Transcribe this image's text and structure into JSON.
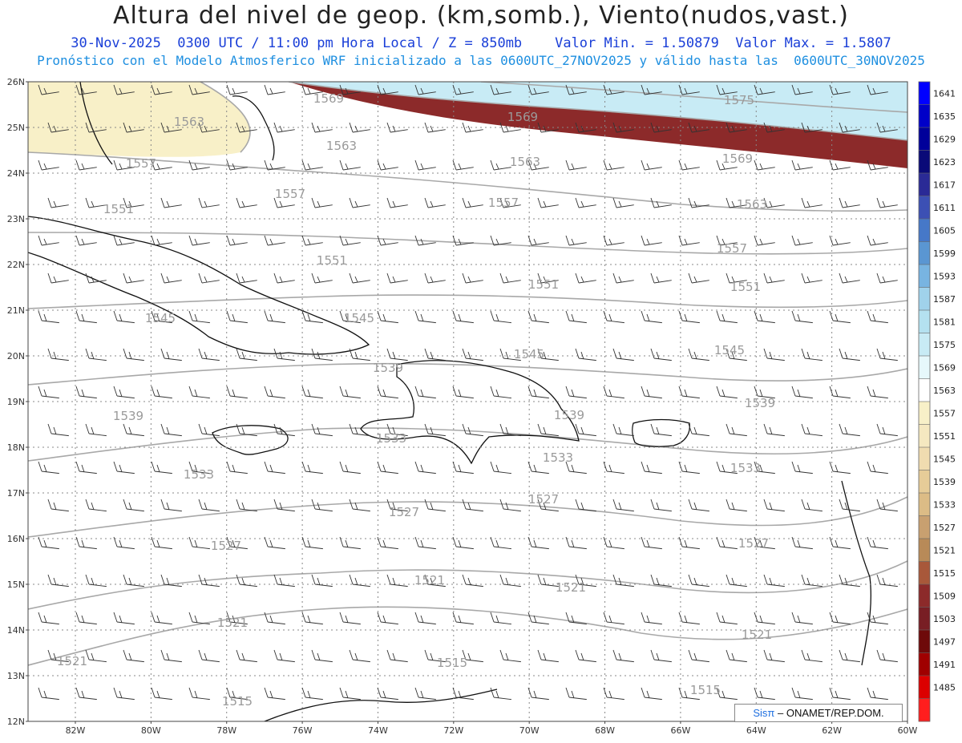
{
  "title": "Altura del nivel de geop. (km,somb.), Viento(nudos,vast.)",
  "subtitle1": "30-Nov-2025  0300 UTC / 11:00 pm Hora Local / Z = 850mb    Valor Min. = 1.50879  Valor Max. = 1.5807",
  "subtitle2": "Pronóstico con el Modelo Atmosferico WRF inicializado a las 0600UTC_27NOV2025 y válido hasta las  0600UTC_30NOV2025",
  "credit": {
    "brand": "Sisπ",
    "text": "– ONAMET/REP.DOM."
  },
  "axes": {
    "lat_labels": [
      "26N",
      "25N",
      "24N",
      "23N",
      "22N",
      "21N",
      "20N",
      "19N",
      "18N",
      "17N",
      "16N",
      "15N",
      "14N",
      "13N",
      "12N"
    ],
    "lon_labels": [
      "82W",
      "80W",
      "78W",
      "76W",
      "74W",
      "72W",
      "70W",
      "68W",
      "66W",
      "64W",
      "62W",
      "60W"
    ]
  },
  "colorbar": {
    "levels": [
      "1641",
      "1635",
      "1629",
      "1623",
      "1617",
      "1611",
      "1605",
      "1599",
      "1593",
      "1587",
      "1581",
      "1575",
      "1569",
      "1563",
      "1557",
      "1551",
      "1545",
      "1539",
      "1533",
      "1527",
      "1521",
      "1515",
      "1509",
      "1503",
      "1497",
      "1491",
      "1485"
    ],
    "colors": [
      "#0000ff",
      "#0000c8",
      "#00009a",
      "#0a0a78",
      "#2a2a96",
      "#3c50b4",
      "#4678c8",
      "#5a96d2",
      "#78b4e1",
      "#a0d2eb",
      "#b4e1f0",
      "#c8ebf5",
      "#e6f8fb",
      "#ffffff",
      "#f8f0c8",
      "#f5e8c0",
      "#f0dcb0",
      "#e6cc98",
      "#dcbc86",
      "#c8a070",
      "#b88a58",
      "#a8583a",
      "#8c2a2a",
      "#781e24",
      "#6e0a0a",
      "#a00000",
      "#dc0000",
      "#ff1e1e"
    ]
  },
  "contour_labels": [
    {
      "text": "1575"
    },
    {
      "text": "1569"
    },
    {
      "text": "1569"
    },
    {
      "text": "1569"
    },
    {
      "text": "1563"
    },
    {
      "text": "1563"
    },
    {
      "text": "1563"
    },
    {
      "text": "1563"
    },
    {
      "text": "1557"
    },
    {
      "text": "1557"
    },
    {
      "text": "1557"
    },
    {
      "text": "1557"
    },
    {
      "text": "1551"
    },
    {
      "text": "1551"
    },
    {
      "text": "1551"
    },
    {
      "text": "1551"
    },
    {
      "text": "1545"
    },
    {
      "text": "1545"
    },
    {
      "text": "1545"
    },
    {
      "text": "1545"
    },
    {
      "text": "1539"
    },
    {
      "text": "1539"
    },
    {
      "text": "1539"
    },
    {
      "text": "1539"
    },
    {
      "text": "1533"
    },
    {
      "text": "1533"
    },
    {
      "text": "1533"
    },
    {
      "text": "1533"
    },
    {
      "text": "1527"
    },
    {
      "text": "1527"
    },
    {
      "text": "1527"
    },
    {
      "text": "1527"
    },
    {
      "text": "1521"
    },
    {
      "text": "1521"
    },
    {
      "text": "1521"
    },
    {
      "text": "1521"
    },
    {
      "text": "1521"
    },
    {
      "text": "1515"
    },
    {
      "text": "1515"
    },
    {
      "text": "1515"
    }
  ]
}
